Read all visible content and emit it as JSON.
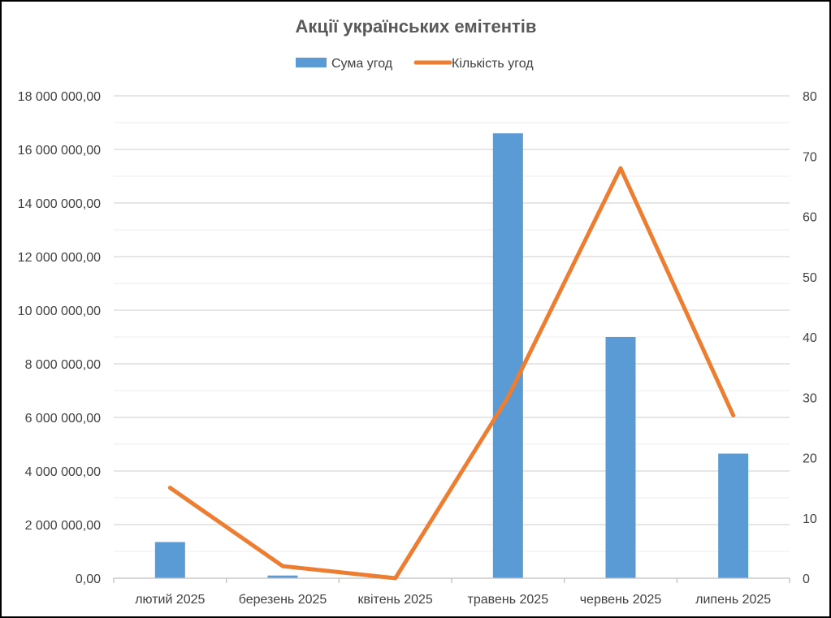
{
  "chart_data": {
    "type": "bar",
    "title": "Акції українських емітентів",
    "categories": [
      "лютий 2025",
      "березень 2025",
      "квітень 2025",
      "травень 2025",
      "червень 2025",
      "липень 2025"
    ],
    "series": [
      {
        "name": "Сума угод",
        "type": "bar",
        "axis": "left",
        "color": "#5B9BD5",
        "values": [
          1350000,
          100000,
          0,
          16600000,
          9000000,
          4650000
        ]
      },
      {
        "name": "Кількість угод",
        "type": "line",
        "axis": "right",
        "color": "#ED7D31",
        "values": [
          15,
          2,
          0,
          30,
          68,
          27
        ]
      }
    ],
    "y_left": {
      "ylim": [
        0,
        18000000
      ],
      "ticks": [
        0,
        2000000,
        4000000,
        6000000,
        8000000,
        10000000,
        12000000,
        14000000,
        16000000,
        18000000
      ],
      "tick_labels": [
        "0,00",
        "2 000 000,00",
        "4 000 000,00",
        "6 000 000,00",
        "8 000 000,00",
        "10 000 000,00",
        "12 000 000,00",
        "14 000 000,00",
        "16 000 000,00",
        "18 000 000,00"
      ]
    },
    "y_right": {
      "ylim": [
        0,
        80
      ],
      "ticks": [
        0,
        10,
        20,
        30,
        40,
        50,
        60,
        70,
        80
      ],
      "tick_labels": [
        "0",
        "10",
        "20",
        "30",
        "40",
        "50",
        "60",
        "70",
        "80"
      ]
    },
    "grid": true,
    "minor_grid": true,
    "legend_position": "top-center"
  }
}
